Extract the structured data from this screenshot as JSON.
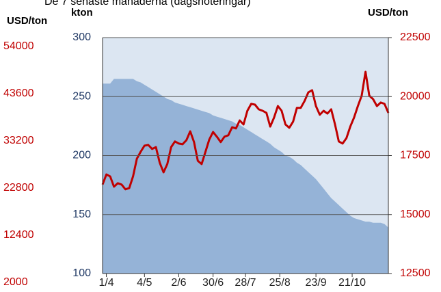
{
  "chart_data": {
    "type": "combo",
    "title": "De 7 senaste månaderna (dagsnoteringar)",
    "ylabel": "kton",
    "y2label": "USD/ton",
    "y3label": "USD/ton",
    "x": [
      0,
      2,
      4,
      6,
      8,
      10,
      12,
      14,
      16,
      18,
      20,
      22,
      24,
      26,
      28,
      30,
      32,
      34,
      36,
      38,
      40,
      42,
      44,
      46,
      48,
      50,
      52,
      54,
      56,
      58,
      60,
      62,
      64,
      66,
      68,
      70,
      72,
      74,
      76,
      78,
      80,
      82,
      84,
      86,
      88,
      90,
      92,
      94,
      96,
      98,
      100,
      102,
      104,
      106,
      108,
      110,
      112,
      114,
      116,
      118,
      120,
      122,
      124,
      126,
      128,
      130,
      132,
      134,
      136,
      138,
      140,
      142,
      144,
      146,
      148,
      150
    ],
    "xlim": [
      0,
      150
    ],
    "xticks": [
      {
        "value": 2,
        "label": "1/4"
      },
      {
        "value": 22,
        "label": "4/5"
      },
      {
        "value": 40,
        "label": "2/6"
      },
      {
        "value": 58,
        "label": "30/6"
      },
      {
        "value": 75,
        "label": "28/7"
      },
      {
        "value": 93,
        "label": "25/8"
      },
      {
        "value": 112,
        "label": "23/9"
      },
      {
        "value": 131,
        "label": "21/10"
      }
    ],
    "ylim": [
      100,
      300
    ],
    "yticks": [
      100,
      150,
      200,
      250,
      300
    ],
    "y2lim": [
      12500,
      22500
    ],
    "y2ticks": [
      12500,
      15000,
      17500,
      20000,
      22500
    ],
    "y3lim": [
      2000,
      54000
    ],
    "y3ticks": [
      54000,
      43600,
      33200,
      22800,
      12400,
      2000
    ],
    "grid": true,
    "series": [
      {
        "kind": "area",
        "color": "#95b3d7",
        "values": [
          261,
          261,
          261,
          265,
          265,
          265,
          265,
          265,
          265,
          263,
          262,
          260,
          258,
          256,
          254,
          252,
          250,
          248,
          247,
          245,
          244,
          243,
          242,
          241,
          240,
          239,
          238,
          237,
          236,
          234,
          233,
          232,
          231,
          230,
          229,
          227,
          226,
          224,
          222,
          220,
          218,
          216,
          214,
          212,
          210,
          207,
          205,
          203,
          200,
          199,
          197,
          194,
          192,
          189,
          186,
          183,
          180,
          176,
          172,
          168,
          164,
          161,
          158,
          155,
          152,
          149,
          147,
          146,
          145,
          144,
          144,
          143,
          143,
          143,
          142,
          139
        ]
      },
      {
        "kind": "line",
        "axis": "y2",
        "color": "#c00000",
        "values": [
          16270,
          16700,
          16620,
          16180,
          16330,
          16270,
          16070,
          16120,
          16620,
          17370,
          17660,
          17920,
          17950,
          17780,
          17860,
          17200,
          16790,
          17140,
          17860,
          18100,
          18010,
          17980,
          18150,
          18530,
          18070,
          17280,
          17140,
          17660,
          18180,
          18500,
          18300,
          18070,
          18300,
          18360,
          18700,
          18650,
          18990,
          18820,
          19400,
          19690,
          19660,
          19460,
          19400,
          19310,
          18730,
          19110,
          19600,
          19400,
          18820,
          18680,
          18940,
          19520,
          19520,
          19810,
          20180,
          20270,
          19600,
          19230,
          19400,
          19280,
          19460,
          18820,
          18100,
          18010,
          18240,
          18730,
          19110,
          19600,
          20040,
          21050,
          20040,
          19890,
          19600,
          19750,
          19690,
          19310
        ]
      }
    ]
  }
}
